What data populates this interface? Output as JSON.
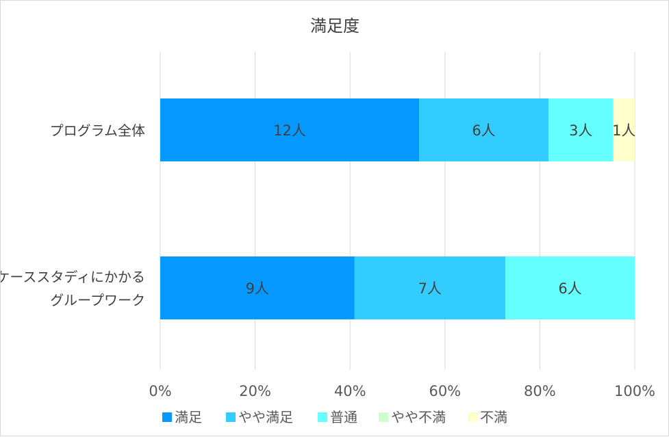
{
  "chart_data": {
    "type": "bar",
    "orientation": "horizontal",
    "stacked": "percent",
    "title": "満足度",
    "xlabel": "",
    "ylabel": "",
    "categories": [
      "プログラム全体",
      "ケーススタディにかかるグループワーク"
    ],
    "category_lines": [
      [
        "プログラム全体"
      ],
      [
        "ケーススタディにかかる",
        "グループワーク"
      ]
    ],
    "series": [
      {
        "name": "満足",
        "values": [
          12,
          9
        ],
        "color": "#0599FF"
      },
      {
        "name": "やや満足",
        "values": [
          6,
          7
        ],
        "color": "#33CCFF"
      },
      {
        "name": "普通",
        "values": [
          3,
          6
        ],
        "color": "#66FFFF"
      },
      {
        "name": "やや不満",
        "values": [
          0,
          0
        ],
        "color": "#CCFFCC"
      },
      {
        "name": "不満",
        "values": [
          1,
          0
        ],
        "color": "#FFFFCC"
      }
    ],
    "value_label_suffix": "人",
    "xlim": [
      0,
      100
    ],
    "x_ticks": [
      "0%",
      "20%",
      "40%",
      "60%",
      "80%",
      "100%"
    ],
    "grid": true,
    "legend_position": "bottom"
  }
}
